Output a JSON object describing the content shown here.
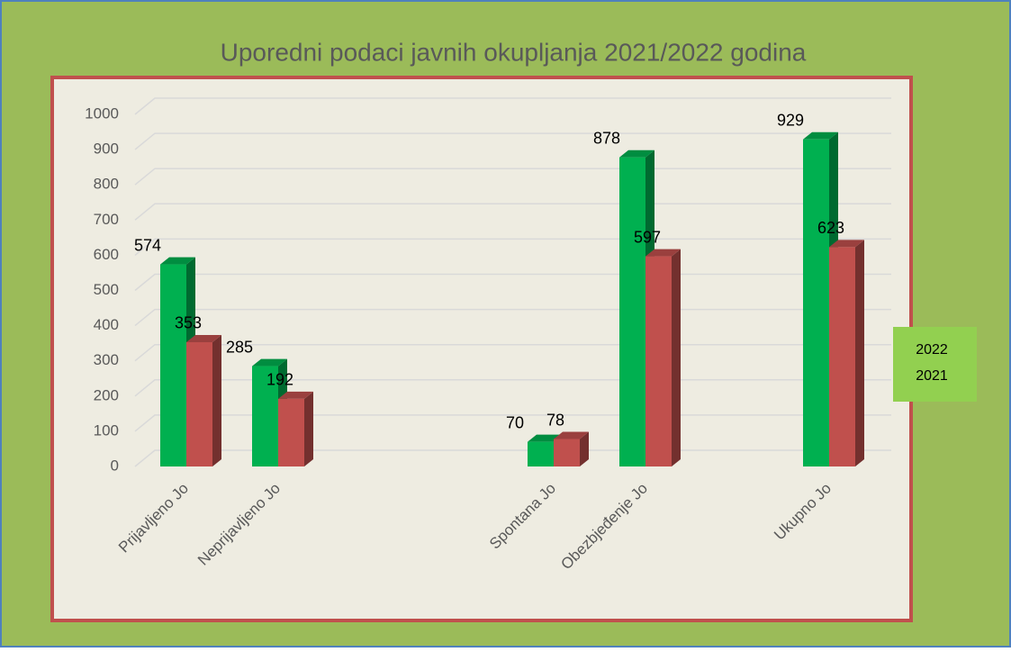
{
  "chart_data": {
    "type": "bar3d",
    "title": "Uporedni podaci javnih okupljanja 2021/2022 godina",
    "categories": [
      "Prijavljeno Jo",
      "Neprijavljeno Jo",
      null,
      null,
      "Spontana Jo",
      "Obezbjeđenje Jo",
      null,
      "Ukupno Jo"
    ],
    "series": [
      {
        "name": "2022",
        "color": "#00b050",
        "values": [
          574,
          285,
          null,
          null,
          70,
          878,
          null,
          929
        ]
      },
      {
        "name": "2021",
        "color": "#c0504d",
        "values": [
          353,
          192,
          null,
          null,
          78,
          597,
          null,
          623
        ]
      }
    ],
    "ylim": [
      0,
      1000
    ],
    "yticks": [
      0,
      100,
      200,
      300,
      400,
      500,
      600,
      700,
      800,
      900,
      1000
    ],
    "grid": true,
    "legend": "right"
  }
}
